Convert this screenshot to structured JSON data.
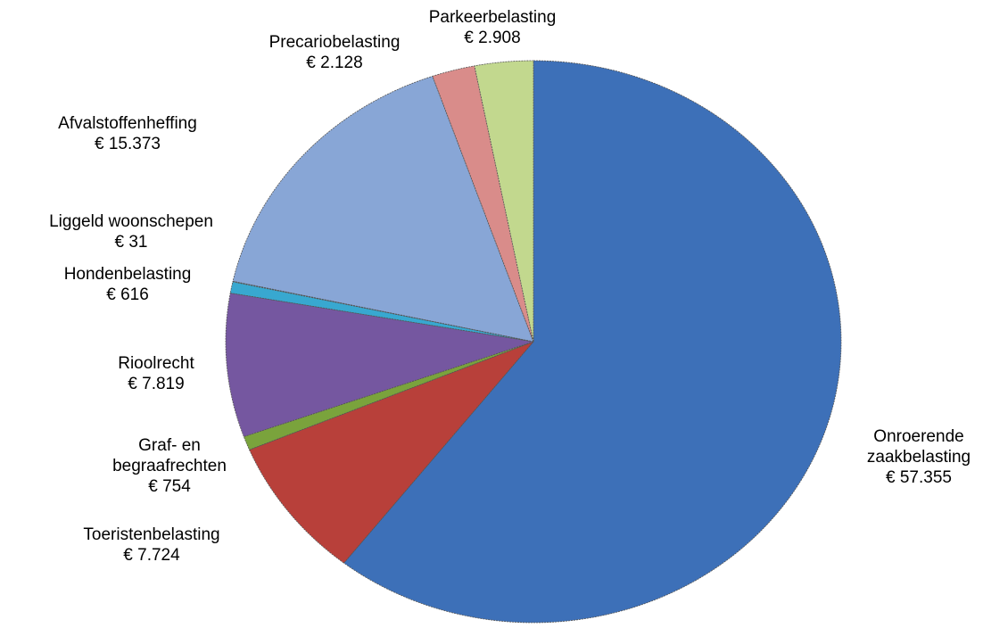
{
  "chart_data": {
    "type": "pie",
    "categories": [
      "Onroerende zaakbelasting",
      "Toeristenbelasting",
      "Graf- en begraafrechten",
      "Rioolrecht",
      "Hondenbelasting",
      "Liggeld woonschepen",
      "Afvalstoffenheffing",
      "Precariobelasting",
      "Parkeerbelasting"
    ],
    "values": [
      57355,
      7724,
      754,
      7819,
      616,
      31,
      15373,
      2128,
      2908
    ],
    "value_labels": [
      "€ 57.355",
      "€ 7.724",
      "€ 754",
      "€ 7.819",
      "€ 616",
      "€ 31",
      "€ 15.373",
      "€ 2.128",
      "€ 2.908"
    ],
    "colors": [
      "#3d70b8",
      "#b8403a",
      "#7aa33c",
      "#7557a0",
      "#38a8d0",
      "#5ec0e0",
      "#88a6d6",
      "#d98c8a",
      "#c2d88e"
    ]
  }
}
